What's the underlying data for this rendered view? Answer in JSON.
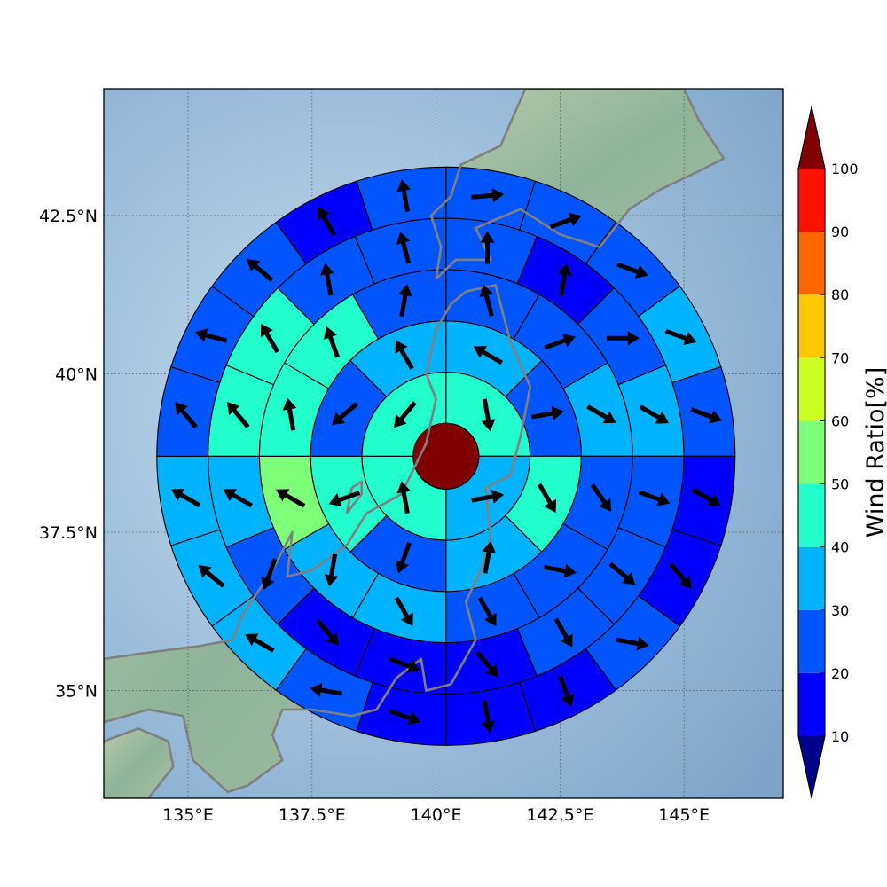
{
  "map": {
    "lon_range": [
      133.3,
      147.0
    ],
    "lat_range": [
      33.3,
      44.5
    ],
    "lon_ticks": [
      135,
      137.5,
      140,
      142.5,
      145
    ],
    "lat_ticks": [
      35,
      37.5,
      40,
      42.5
    ],
    "lon_tick_labels": [
      "135°E",
      "137.5°E",
      "140°E",
      "142.5°E",
      "145°E"
    ],
    "lat_tick_labels": [
      "35°N",
      "37.5°N",
      "40°N",
      "42.5°N"
    ],
    "gridlines": true,
    "background": "shaded-relief",
    "ocean_color": "#93b6d6",
    "land_color": "#8fb39a",
    "coastline_color": "#808080"
  },
  "polar_grid": {
    "center": [
      140.2,
      38.7
    ],
    "n_rings": 5,
    "ring_sectors": [
      4,
      8,
      12,
      16,
      20
    ],
    "inner_ratio": 100,
    "ratios": [
      [
        40,
        30,
        40,
        40
      ],
      [
        30,
        20,
        40,
        30,
        20,
        40,
        20,
        30
      ],
      [
        20,
        20,
        30,
        20,
        20,
        20,
        30,
        30,
        50,
        40,
        40,
        20
      ],
      [
        20,
        10,
        20,
        30,
        20,
        20,
        20,
        10,
        10,
        10,
        20,
        30,
        40,
        40,
        20,
        20
      ],
      [
        20,
        20,
        20,
        30,
        20,
        10,
        10,
        20,
        10,
        10,
        10,
        20,
        30,
        30,
        30,
        20,
        20,
        20,
        10,
        20
      ]
    ],
    "wind_dir": [
      [
        170,
        80,
        -10,
        220
      ],
      [
        -60,
        80,
        150,
        10,
        200,
        250,
        230,
        330
      ],
      [
        -15,
        70,
        120,
        145,
        100,
        150,
        150,
        190,
        300,
        350,
        340,
        10
      ],
      [
        0,
        10,
        90,
        120,
        110,
        130,
        150,
        140,
        110,
        140,
        200,
        300,
        320,
        330,
        350,
        345
      ],
      [
        85,
        70,
        110,
        110,
        110,
        120,
        140,
        100,
        160,
        170,
        110,
        280,
        300,
        310,
        300,
        320,
        285,
        310,
        330,
        350
      ]
    ]
  },
  "colorbar": {
    "label": "Wind Ratio[%]",
    "ticks": [
      10,
      20,
      30,
      40,
      50,
      60,
      70,
      80,
      90,
      100
    ],
    "bins": [
      {
        "from": 10,
        "to": 20,
        "color": "#0000ff"
      },
      {
        "from": 20,
        "to": 30,
        "color": "#0055ff"
      },
      {
        "from": 30,
        "to": 40,
        "color": "#00b3ff"
      },
      {
        "from": 40,
        "to": 50,
        "color": "#22ffcc"
      },
      {
        "from": 50,
        "to": 60,
        "color": "#7dff7a"
      },
      {
        "from": 60,
        "to": 70,
        "color": "#ccff22"
      },
      {
        "from": 70,
        "to": 80,
        "color": "#ffc800"
      },
      {
        "from": 80,
        "to": 90,
        "color": "#ff6600"
      },
      {
        "from": 90,
        "to": 100,
        "color": "#ff1100"
      }
    ],
    "under_color": "#00008a",
    "over_color": "#800000"
  }
}
